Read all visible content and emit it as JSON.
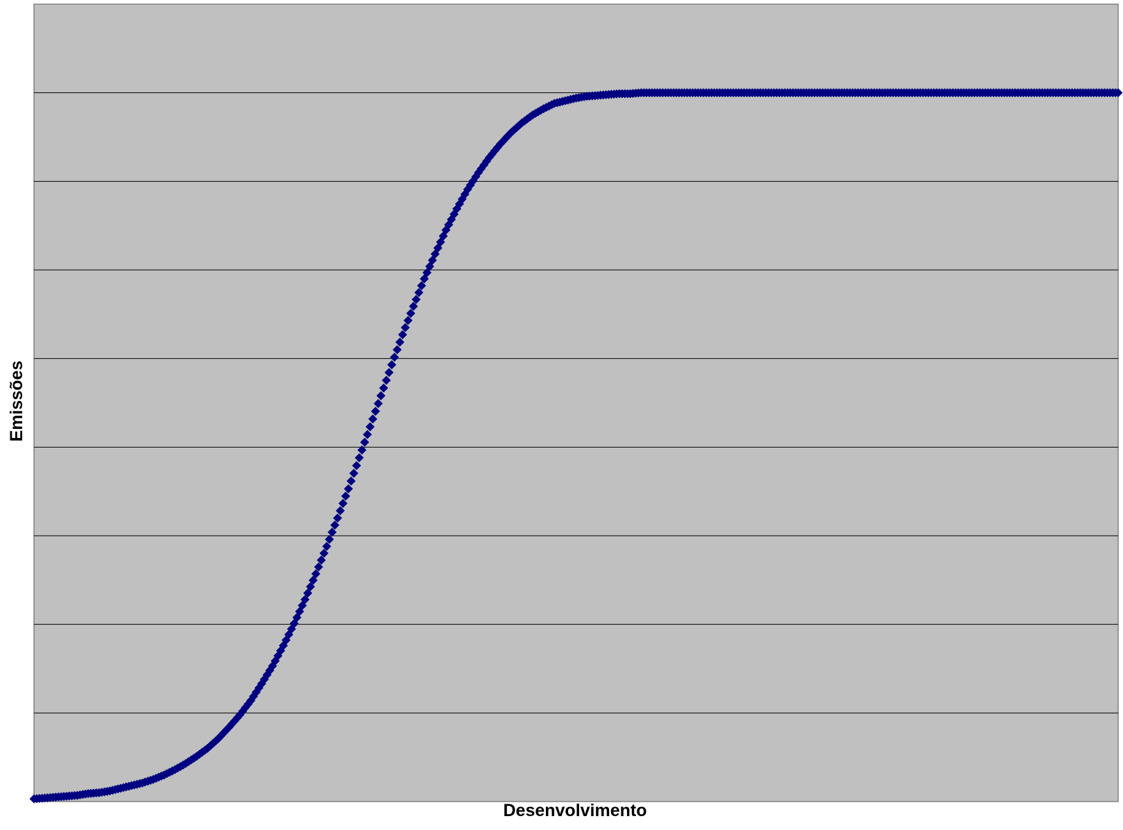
{
  "chart_data": {
    "type": "scatter",
    "title": "",
    "xlabel": "Desenvolvimento",
    "ylabel": "Emissões",
    "x_ticks_shown": false,
    "y_ticks_shown": false,
    "xlim": [
      0,
      100
    ],
    "ylim": [
      0,
      9
    ],
    "horizontal_gridlines": [
      1,
      2,
      3,
      4,
      5,
      6,
      7,
      8
    ],
    "grid": true,
    "legend": "none",
    "colors": {
      "plot_area": "#c0c0c0",
      "gridline": "#000000",
      "series": "#000080"
    },
    "marker": "diamond",
    "series": [
      {
        "name": "",
        "curve": "logistic",
        "x": [
          0,
          1,
          2,
          3,
          4,
          5,
          6,
          7,
          8,
          9,
          10,
          11,
          12,
          13,
          14,
          15,
          16,
          17,
          18,
          19,
          20,
          21,
          22,
          23,
          24,
          25,
          26,
          27,
          28,
          29,
          30,
          31,
          32,
          33,
          34,
          35,
          36,
          37,
          38,
          39,
          40,
          41,
          42,
          43,
          44,
          45,
          46,
          47,
          48,
          49,
          50,
          51,
          52,
          53,
          54,
          55,
          56,
          57,
          58,
          59,
          60,
          61,
          62,
          63,
          64,
          65,
          66,
          67,
          68,
          69,
          70,
          71,
          72,
          73,
          74,
          75,
          76,
          77,
          78,
          79,
          80,
          81,
          82,
          83,
          84,
          85,
          86,
          87,
          88,
          89,
          90,
          91,
          92,
          93,
          94,
          95,
          96,
          97,
          98,
          99,
          100
        ],
        "y": [
          0.03,
          0.04,
          0.05,
          0.06,
          0.07,
          0.09,
          0.1,
          0.12,
          0.15,
          0.18,
          0.21,
          0.25,
          0.3,
          0.36,
          0.43,
          0.51,
          0.6,
          0.71,
          0.84,
          0.98,
          1.14,
          1.33,
          1.53,
          1.76,
          2.01,
          2.28,
          2.57,
          2.88,
          3.2,
          3.53,
          3.88,
          4.23,
          4.58,
          4.93,
          5.27,
          5.59,
          5.9,
          6.18,
          6.45,
          6.69,
          6.91,
          7.1,
          7.27,
          7.42,
          7.55,
          7.66,
          7.75,
          7.82,
          7.88,
          7.91,
          7.94,
          7.96,
          7.97,
          7.98,
          7.99,
          7.99,
          8.0,
          8.0,
          8.0,
          8.0,
          8.0,
          8.0,
          8.0,
          8.0,
          8.0,
          8.0,
          8.0,
          8.0,
          8.0,
          8.0,
          8.0,
          8.0,
          8.0,
          8.0,
          8.0,
          8.0,
          8.0,
          8.0,
          8.0,
          8.0,
          8.0,
          8.0,
          8.0,
          8.0,
          8.0,
          8.0,
          8.0,
          8.0,
          8.0,
          8.0,
          8.0,
          8.0,
          8.0,
          8.0,
          8.0,
          8.0,
          8.0,
          8.0,
          8.0,
          8.0,
          8.0
        ]
      }
    ]
  }
}
